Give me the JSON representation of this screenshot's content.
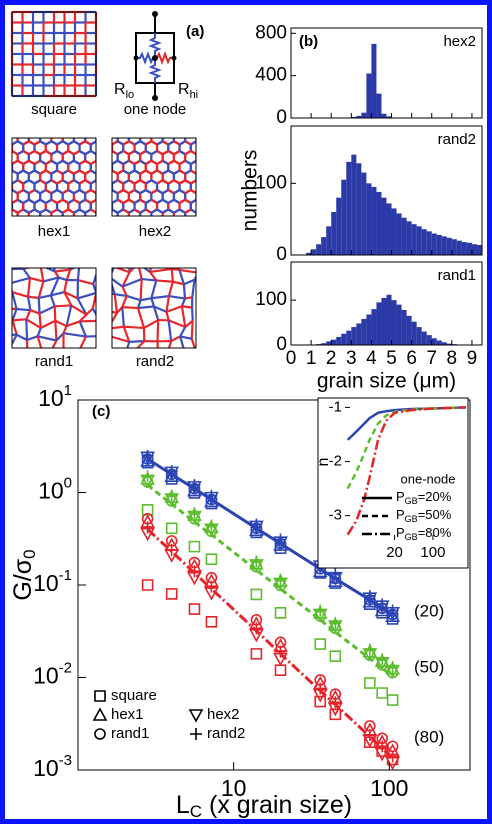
{
  "panel_a": {
    "label": "(a)",
    "networks": [
      "square",
      "one node",
      "hex1",
      "hex2",
      "rand1",
      "rand2"
    ],
    "r_lo": [
      "R",
      "lo"
    ],
    "r_hi": [
      "R",
      "hi"
    ]
  },
  "chart_data": [
    {
      "type": "histogram",
      "annotation": "(b)",
      "label": "hex2",
      "color": "#2b3aa6",
      "bins": [
        3,
        3.25,
        3.5,
        3.75,
        4,
        4.25,
        4.5,
        4.75,
        5,
        5.25,
        5.5
      ],
      "values": [
        10,
        20,
        50,
        420,
        700,
        230,
        40,
        15,
        5,
        2
      ],
      "xlim": [
        0,
        9.5
      ],
      "xticks": [
        0,
        1,
        2,
        3,
        4,
        5,
        6,
        7,
        8,
        9
      ],
      "ylim": [
        0,
        850
      ],
      "yticks": [
        0,
        400,
        800
      ]
    },
    {
      "type": "histogram",
      "label": "rand2",
      "ylabel": "numbers",
      "color": "#2b3aa6",
      "bins": [
        0.75,
        1,
        1.25,
        1.5,
        1.75,
        2,
        2.25,
        2.5,
        2.75,
        3,
        3.25,
        3.5,
        3.75,
        4,
        4.25,
        4.5,
        4.75,
        5,
        5.25,
        5.5,
        5.75,
        6,
        6.25,
        6.5,
        6.75,
        7,
        7.25,
        7.5,
        7.75,
        8,
        8.25,
        8.5,
        8.75,
        9,
        9.25,
        9.5
      ],
      "values": [
        3,
        8,
        15,
        25,
        40,
        60,
        80,
        105,
        130,
        140,
        128,
        115,
        100,
        95,
        88,
        80,
        72,
        65,
        58,
        52,
        47,
        43,
        40,
        36,
        33,
        30,
        28,
        26,
        24,
        22,
        20,
        18,
        17,
        15,
        14
      ],
      "xlim": [
        0,
        9.5
      ],
      "xticks": [
        0,
        1,
        2,
        3,
        4,
        5,
        6,
        7,
        8,
        9
      ],
      "ylim": [
        0,
        180
      ],
      "yticks": [
        0,
        100
      ]
    },
    {
      "type": "histogram",
      "label": "rand1",
      "xlabel": "grain size (μm)",
      "color": "#2b3aa6",
      "bins": [
        1.25,
        1.5,
        1.75,
        2,
        2.25,
        2.5,
        2.75,
        3,
        3.25,
        3.5,
        3.75,
        4,
        4.25,
        4.5,
        4.75,
        5,
        5.25,
        5.5,
        5.75,
        6,
        6.25,
        6.5,
        6.75,
        7,
        7.25,
        7.5,
        7.75,
        8,
        8.25
      ],
      "values": [
        2,
        4,
        8,
        12,
        18,
        25,
        32,
        40,
        48,
        58,
        68,
        80,
        95,
        105,
        112,
        100,
        90,
        78,
        65,
        52,
        40,
        30,
        22,
        15,
        10,
        6,
        3,
        2
      ],
      "xlim": [
        0,
        9.5
      ],
      "xticks": [
        0,
        1,
        2,
        3,
        4,
        5,
        6,
        7,
        8,
        9
      ],
      "ylim": [
        0,
        185
      ],
      "yticks": [
        0,
        100
      ]
    },
    {
      "type": "scatter",
      "annotation": "(c)",
      "ylabel": "G/σ",
      "ylabel_sub": "0",
      "xlabel": "L",
      "xlabel_sub": "C",
      "xlabel_rest": " (x grain size)",
      "log_x": true,
      "log_y": true,
      "xlim": [
        1,
        330
      ],
      "xticks": [
        10,
        100
      ],
      "ylim": [
        0.001,
        10
      ],
      "yticks": [
        {
          "value": 0.001,
          "base": "10",
          "exponent": "-3"
        },
        {
          "value": 0.01,
          "base": "10",
          "exponent": "-2"
        },
        {
          "value": 0.1,
          "base": "10",
          "exponent": "-1"
        },
        {
          "value": 1,
          "base": "10",
          "exponent": "0"
        },
        {
          "value": 10,
          "base": "10",
          "exponent": "1"
        }
      ],
      "markers": [
        {
          "name": "square",
          "shape": "square"
        },
        {
          "name": "hex1",
          "shape": "triangle"
        },
        {
          "name": "rand1",
          "shape": "circle"
        },
        {
          "name": "hex2",
          "shape": "triangle-down"
        },
        {
          "name": "rand2",
          "shape": "plus"
        }
      ],
      "x": [
        2.8,
        4,
        5.6,
        7.2,
        14,
        20,
        36,
        45,
        75,
        90,
        105
      ],
      "groups": [
        {
          "label": "(20)",
          "color": "#2b44b5",
          "dash": "solid",
          "fit": [
            2.3,
            1.57,
            1.1,
            0.84,
            0.41,
            0.28,
            0.15,
            0.117,
            0.069,
            0.056,
            0.048
          ],
          "series": [
            {
              "values": [
                2.1,
                1.4,
                0.99,
                0.76,
                0.37,
                0.25,
                0.135,
                0.105,
                0.062,
                0.05,
                0.043
              ]
            },
            {
              "values": [
                2.2,
                1.5,
                1.05,
                0.8,
                0.39,
                0.27,
                0.14,
                0.11,
                0.066,
                0.053,
                0.046
              ]
            },
            {
              "values": [
                2.3,
                1.57,
                1.1,
                0.84,
                0.41,
                0.28,
                0.15,
                0.117,
                0.069,
                0.056,
                0.048
              ]
            },
            {
              "values": [
                2.4,
                1.65,
                1.15,
                0.88,
                0.43,
                0.29,
                0.16,
                0.12,
                0.072,
                0.059,
                0.05
              ]
            },
            {
              "values": [
                2.5,
                1.7,
                1.2,
                0.92,
                0.45,
                0.31,
                0.165,
                0.13,
                0.076,
                0.062,
                0.053
              ]
            }
          ]
        },
        {
          "label": "(50)",
          "color": "#5cbd2e",
          "dash": "dashed",
          "fit": [
            1.2,
            0.75,
            0.48,
            0.35,
            0.145,
            0.091,
            0.042,
            0.031,
            0.016,
            0.0126,
            0.0104
          ],
          "series": [
            {
              "values": [
                0.65,
                0.41,
                0.26,
                0.19,
                0.079,
                0.05,
                0.023,
                0.017,
                0.0087,
                0.0068,
                0.0057
              ]
            },
            {
              "values": [
                1.4,
                0.89,
                0.57,
                0.42,
                0.17,
                0.11,
                0.05,
                0.037,
                0.019,
                0.015,
                0.0124
              ]
            },
            {
              "values": [
                1.3,
                0.81,
                0.52,
                0.38,
                0.157,
                0.099,
                0.046,
                0.034,
                0.0174,
                0.0137,
                0.0113
              ]
            },
            {
              "values": [
                1.35,
                0.85,
                0.55,
                0.4,
                0.165,
                0.104,
                0.048,
                0.036,
                0.018,
                0.0144,
                0.0119
              ]
            },
            {
              "values": [
                1.5,
                0.93,
                0.6,
                0.44,
                0.18,
                0.114,
                0.053,
                0.039,
                0.02,
                0.0158,
                0.013
              ]
            }
          ]
        },
        {
          "label": "(80)",
          "color": "#e4242a",
          "dash": "dashdot",
          "fit": [
            0.4,
            0.23,
            0.135,
            0.091,
            0.032,
            0.018,
            0.0072,
            0.0051,
            0.0023,
            0.0017,
            0.00136
          ],
          "series": [
            {
              "values": [
                0.1,
                0.08,
                0.055,
                0.04,
                0.018,
                0.012,
                0.0055,
                0.004,
                0.002,
                0.0016,
                0.0013
              ]
            },
            {
              "values": [
                0.48,
                0.27,
                0.16,
                0.11,
                0.038,
                0.022,
                0.0086,
                0.0061,
                0.0027,
                0.002,
                0.0016
              ]
            },
            {
              "values": [
                0.52,
                0.3,
                0.175,
                0.12,
                0.042,
                0.024,
                0.0094,
                0.0066,
                0.003,
                0.0022,
                0.0018
              ]
            },
            {
              "values": [
                0.36,
                0.21,
                0.12,
                0.082,
                0.029,
                0.016,
                0.0065,
                0.0046,
                0.0021,
                0.0015,
                0.0012
              ]
            },
            {
              "values": [
                0.42,
                0.24,
                0.14,
                0.096,
                0.034,
                0.019,
                0.0076,
                0.0054,
                0.0024,
                0.0018,
                0.0014
              ]
            }
          ]
        }
      ]
    },
    {
      "type": "line",
      "ylabel": "n",
      "legend_title": "one-node",
      "log_x": true,
      "xlim": [
        2.5,
        400
      ],
      "xticks": [
        20,
        100
      ],
      "ylim": [
        -3.45,
        -0.9
      ],
      "yticks": [
        -1,
        -2,
        -3
      ],
      "x": [
        2.8,
        4,
        5.6,
        7,
        10,
        14,
        20,
        40,
        100,
        400
      ],
      "series": [
        {
          "name_parts": [
            "P",
            "GB",
            "=20%"
          ],
          "color": "#2b44b5",
          "dash": "solid",
          "values": [
            -1.6,
            -1.45,
            -1.3,
            -1.2,
            -1.1,
            -1.07,
            -1.05,
            -1.03,
            -1.02,
            -1
          ]
        },
        {
          "name_parts": [
            "P",
            "GB",
            "=50%"
          ],
          "color": "#5cbd2e",
          "dash": "dashed",
          "values": [
            -2.5,
            -2.2,
            -1.85,
            -1.6,
            -1.3,
            -1.15,
            -1.08,
            -1.04,
            -1.02,
            -1
          ]
        },
        {
          "name_parts": [
            "P",
            "GB",
            "=80%"
          ],
          "color": "#e4242a",
          "dash": "dashdot",
          "values": [
            -3.35,
            -3.1,
            -2.7,
            -2.3,
            -1.6,
            -1.25,
            -1.1,
            -1.05,
            -1.02,
            -1
          ]
        }
      ]
    }
  ]
}
